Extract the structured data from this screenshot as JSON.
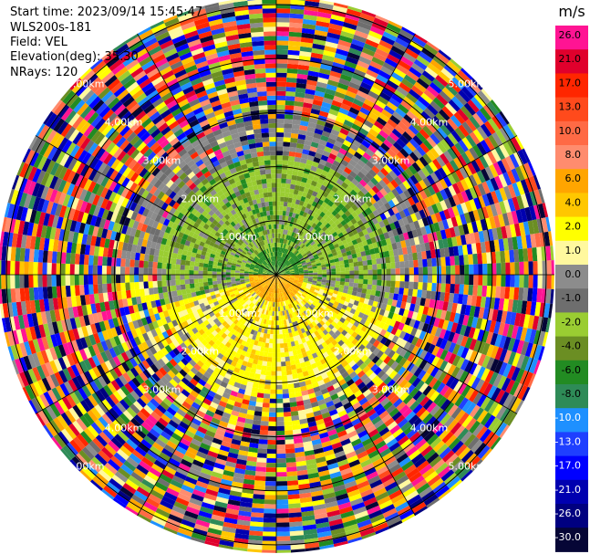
{
  "header": {
    "start_time": "Start time: 2023/09/14 15:45:47",
    "instrument": "WLS200s-181",
    "field": "Field: VEL",
    "elevation": "Elevation(deg): 35.30",
    "nrays": "NRays: 120"
  },
  "chart_data": {
    "type": "heatmap",
    "projection": "polar-ppi",
    "field": "VEL",
    "units": "m/s",
    "n_rays": 120,
    "range_rings": [
      {
        "label": "1.00km",
        "km": 1.0
      },
      {
        "label": "2.00km",
        "km": 2.0
      },
      {
        "label": "3.00km",
        "km": 3.0
      },
      {
        "label": "4.00km",
        "km": 4.0
      },
      {
        "label": "5.00km",
        "km": 5.0
      }
    ],
    "max_range_km": 5.15,
    "colorbar": {
      "title": "m/s",
      "tick_labels": [
        "26.0",
        "21.0",
        "17.0",
        "13.0",
        "10.0",
        "8.0",
        "6.0",
        "4.0",
        "2.0",
        "1.0",
        "0.0",
        "-1.0",
        "-2.0",
        "-4.0",
        "-6.0",
        "-8.0",
        "-10.0",
        "-13.0",
        "-17.0",
        "-21.0",
        "-26.0",
        "-30.0"
      ],
      "colors": [
        "#ff1493",
        "#e0002c",
        "#ff2600",
        "#ff4a1c",
        "#ff6a45",
        "#ff8c6e",
        "#ffa500",
        "#ffc700",
        "#ffff00",
        "#fff89e",
        "#8c8c8c",
        "#6e6e6e",
        "#9acd32",
        "#6b8e23",
        "#228b22",
        "#2e8b57",
        "#1e90ff",
        "#1f3fff",
        "#0000ff",
        "#0000b0",
        "#000080",
        "#060636"
      ]
    }
  },
  "colors": {
    "grid_line": "#000000",
    "ring_label": "#ffffff",
    "background": "#ffffff"
  }
}
